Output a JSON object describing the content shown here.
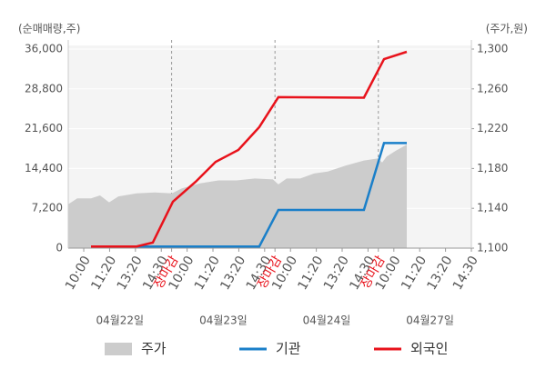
{
  "chart_data": {
    "type": "line",
    "y_axis_title": "(순매매량,주)",
    "y2_axis_title": "(주가,원)",
    "xlim": [
      0,
      15.6
    ],
    "xticks": [
      {
        "value": 0.6,
        "label": "10:00"
      },
      {
        "value": 1.6,
        "label": "11:20"
      },
      {
        "value": 2.6,
        "label": "13:20"
      },
      {
        "value": 3.6,
        "label": "14:30"
      },
      {
        "value": 4,
        "label": "장마감",
        "color": "#e8121b"
      },
      {
        "value": 4.6,
        "label": "10:00"
      },
      {
        "value": 5.6,
        "label": "11:20"
      },
      {
        "value": 6.6,
        "label": "13:20"
      },
      {
        "value": 7.6,
        "label": "14:30"
      },
      {
        "value": 8,
        "label": "장마감",
        "color": "#e8121b"
      },
      {
        "value": 8.6,
        "label": "10:00"
      },
      {
        "value": 9.6,
        "label": "11:20"
      },
      {
        "value": 10.6,
        "label": "13:20"
      },
      {
        "value": 11.6,
        "label": "14:30"
      },
      {
        "value": 12,
        "label": "장마감",
        "color": "#e8121b"
      },
      {
        "value": 12.6,
        "label": "10:00"
      },
      {
        "value": 13.6,
        "label": "11:20"
      },
      {
        "value": 14.6,
        "label": "13:20"
      },
      {
        "value": 15.6,
        "label": "14:30"
      }
    ],
    "day_labels": [
      "04월22일",
      "04월23일",
      "04월24일",
      "04월27일"
    ],
    "ylim": [
      0,
      36000
    ],
    "yticks": [
      0,
      {
        "value": 7200,
        "label": "7,200"
      },
      {
        "value": 14400,
        "label": "14,400"
      },
      {
        "value": 21600,
        "label": "21,600"
      },
      {
        "value": 28800,
        "label": "28,800"
      },
      {
        "value": 36000,
        "label": "36,000"
      }
    ],
    "y2lim": [
      1100,
      1300
    ],
    "y2ticks": [
      {
        "value": 1100,
        "label": "1,100"
      },
      {
        "value": 1140,
        "label": "1,140"
      },
      {
        "value": 1180,
        "label": "1,180"
      },
      {
        "value": 1220,
        "label": "1,220"
      },
      {
        "value": 1260,
        "label": "1,260"
      },
      {
        "value": 1300,
        "label": "1,300"
      }
    ],
    "grid": true,
    "series": [
      {
        "name": "주가",
        "type": "area",
        "axis": "y2",
        "color": "#cccccc",
        "x": [
          0,
          0.35,
          0.88,
          1.23,
          1.58,
          1.94,
          2.64,
          3.35,
          4.01,
          4.4,
          5.1,
          5.81,
          6.51,
          7.22,
          7.92,
          8.13,
          8.45,
          8.98,
          9.51,
          10.04,
          10.74,
          11.44,
          11.97,
          12.15,
          12.32,
          12.68,
          13.1
        ],
        "values": [
          1144,
          1150,
          1150,
          1153,
          1146,
          1152,
          1155,
          1156,
          1155,
          1160,
          1165,
          1168,
          1168,
          1170,
          1169,
          1164,
          1170,
          1170,
          1175,
          1177,
          1183,
          1188,
          1190,
          1186,
          1192,
          1198,
          1204
        ]
      },
      {
        "name": "기관",
        "type": "line",
        "color": "#1a7fc9",
        "x": [
          0.88,
          7.39,
          8.13,
          11.44,
          12.22,
          13.1
        ],
        "values": [
          300,
          300,
          6900,
          6900,
          19000,
          19000
        ]
      },
      {
        "name": "외국인",
        "type": "line",
        "color": "#e8121b",
        "x": [
          0.88,
          2.64,
          3.27,
          4.05,
          4.93,
          5.7,
          6.58,
          7.39,
          8.13,
          11.44,
          12.22,
          13.1
        ],
        "values": [
          300,
          300,
          1000,
          8400,
          12000,
          15600,
          17750,
          21900,
          27300,
          27200,
          34200,
          35500
        ]
      }
    ]
  }
}
